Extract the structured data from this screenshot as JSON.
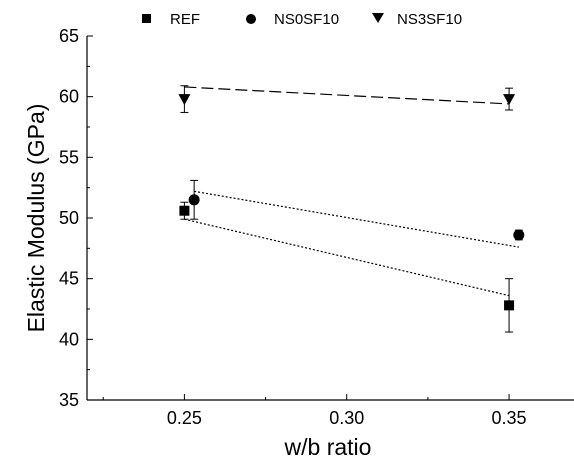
{
  "chart_data": {
    "type": "scatter",
    "xlabel": "w/b ratio",
    "ylabel": "Elastic Modulus (GPa)",
    "xlim": [
      0.22,
      0.37
    ],
    "ylim": [
      35,
      65
    ],
    "xticks": [
      0.25,
      0.3,
      0.35
    ],
    "xtick_labels": [
      "0.25",
      "0.30",
      "0.35"
    ],
    "yticks": [
      35,
      40,
      45,
      50,
      55,
      60,
      65
    ],
    "ytick_labels": [
      "35",
      "40",
      "45",
      "50",
      "55",
      "60",
      "65"
    ],
    "legend_position": "top",
    "series": [
      {
        "name": "REF",
        "marker": "square",
        "points": [
          {
            "x": 0.25,
            "y": 50.6,
            "err": 0.7
          },
          {
            "x": 0.35,
            "y": 42.8,
            "err": 2.2
          }
        ],
        "fit_line": {
          "x": [
            0.25,
            0.35
          ],
          "y": [
            49.9,
            43.6
          ],
          "style": "dotted"
        }
      },
      {
        "name": "NS0SF10",
        "marker": "circle",
        "points": [
          {
            "x": 0.253,
            "y": 51.5,
            "err": 1.6
          },
          {
            "x": 0.353,
            "y": 48.6,
            "err": 0.4
          }
        ],
        "fit_line": {
          "x": [
            0.253,
            0.353
          ],
          "y": [
            52.2,
            47.6
          ],
          "style": "dotted"
        }
      },
      {
        "name": "NS3SF10",
        "marker": "triangle-down",
        "points": [
          {
            "x": 0.25,
            "y": 59.8,
            "err": 1.1
          },
          {
            "x": 0.35,
            "y": 59.8,
            "err": 0.9
          }
        ],
        "fit_line": {
          "x": [
            0.25,
            0.35
          ],
          "y": [
            60.8,
            59.4
          ],
          "style": "dashed"
        }
      }
    ]
  }
}
